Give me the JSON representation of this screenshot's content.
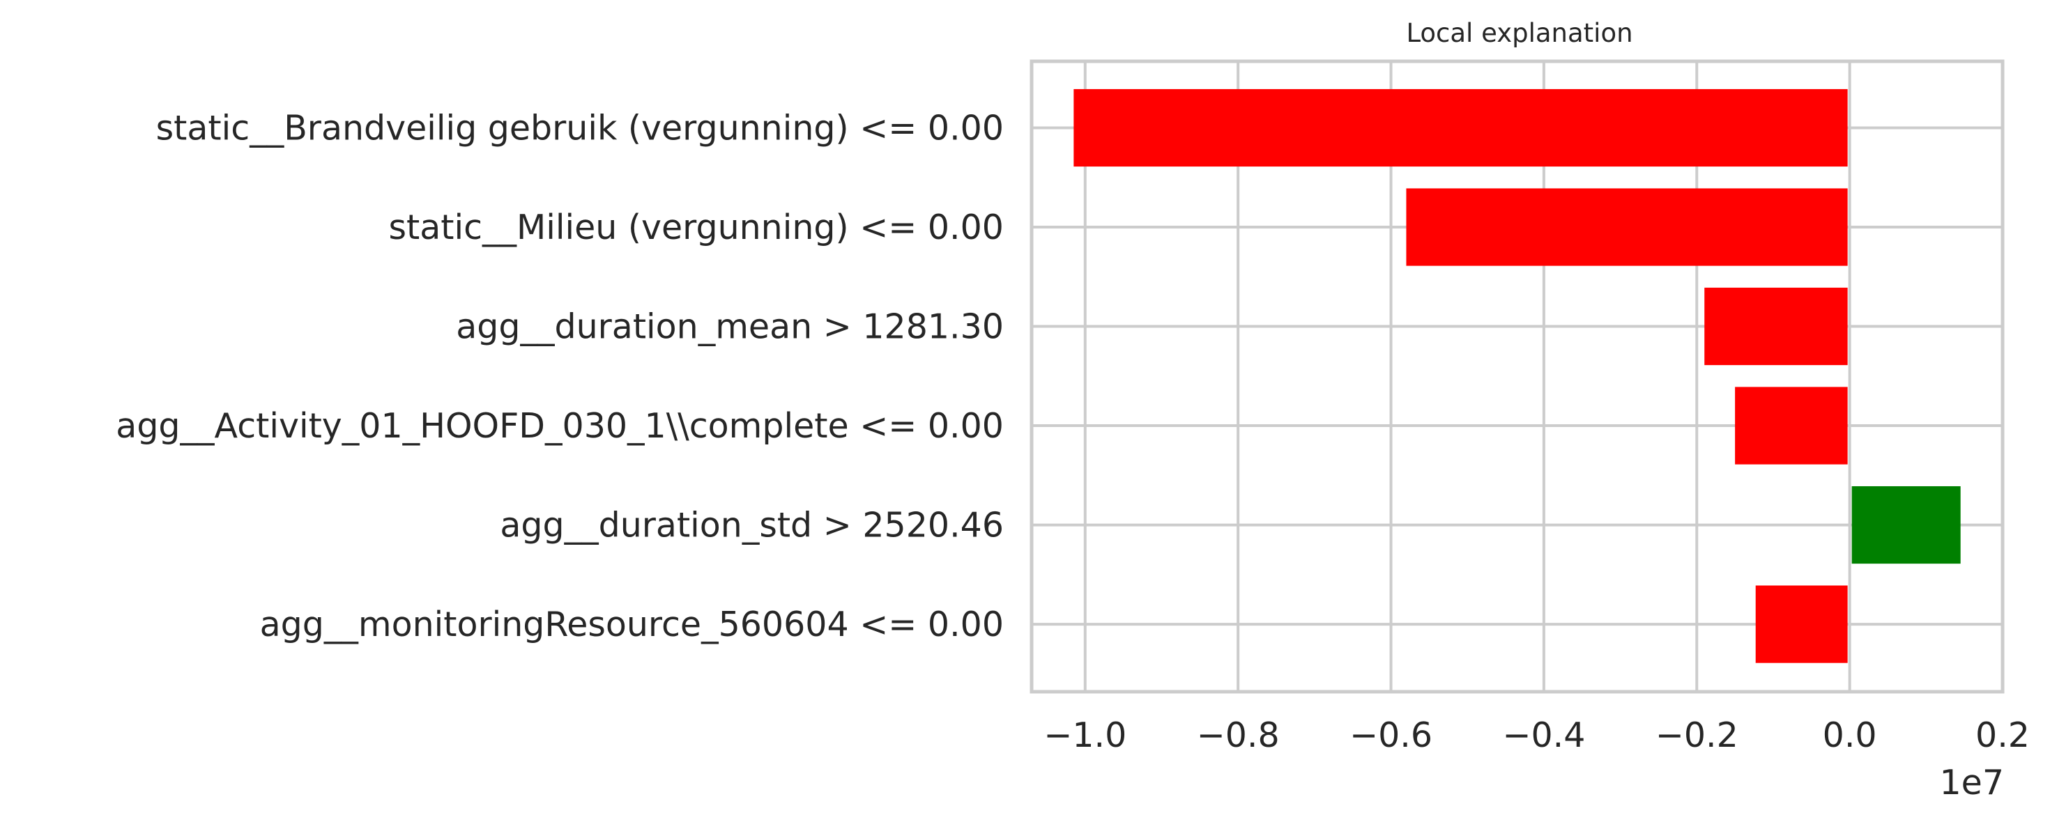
{
  "chart_data": {
    "type": "bar",
    "orientation": "horizontal",
    "title": "Local explanation",
    "categories": [
      "static__Brandveilig gebruik (vergunning) <= 0.00",
      "static__Milieu (vergunning) <= 0.00",
      "agg__duration_mean > 1281.30",
      "agg__Activity_01_HOOFD_030_1\\\\complete <= 0.00",
      "agg__duration_std > 2520.46",
      "agg__monitoringResource_560604 <= 0.00"
    ],
    "values": [
      -10150000,
      -5800000,
      -1900000,
      -1500000,
      1450000,
      -1230000
    ],
    "bar_colors": [
      "#ff0000",
      "#ff0000",
      "#ff0000",
      "#ff0000",
      "#008000",
      "#ff0000"
    ],
    "x_ticks": [
      -1.0,
      -0.8,
      -0.6,
      -0.4,
      -0.2,
      0.0,
      0.2
    ],
    "x_tick_labels": [
      "−1.0",
      "−0.8",
      "−0.6",
      "−0.4",
      "−0.2",
      "0.0",
      "0.2"
    ],
    "x_offset_label": "1e7",
    "xlim": [
      -10700000,
      2000000
    ],
    "grid": true,
    "xlabel": "",
    "ylabel": ""
  }
}
